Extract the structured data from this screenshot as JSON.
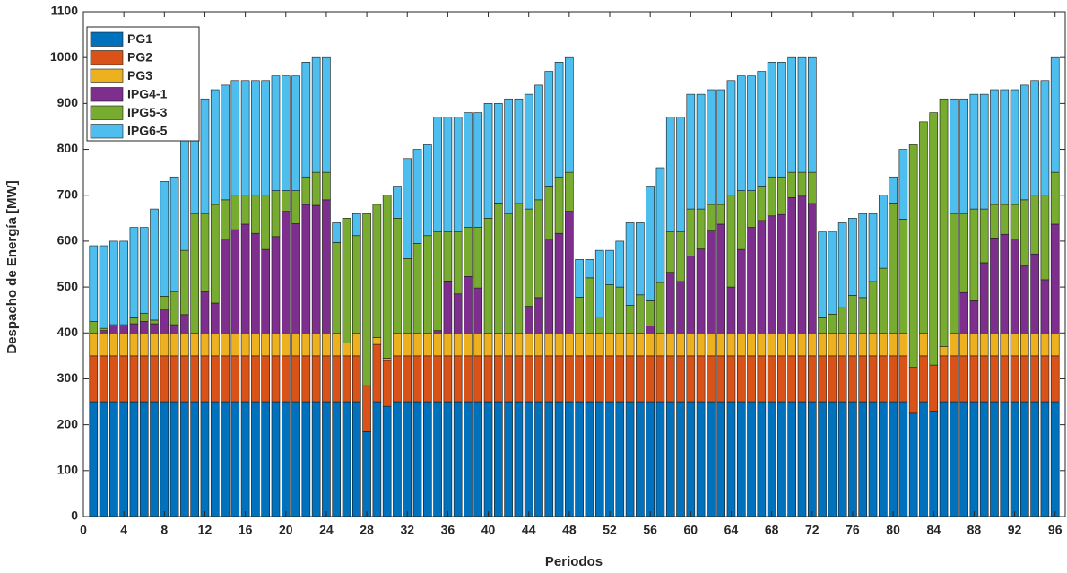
{
  "chart_data": {
    "type": "stacked_bar",
    "xlabel": "Periodos",
    "ylabel": "Despacho de Energía [MW]",
    "x": [
      1,
      2,
      3,
      4,
      5,
      6,
      7,
      8,
      9,
      10,
      11,
      12,
      13,
      14,
      15,
      16,
      17,
      18,
      19,
      20,
      21,
      22,
      23,
      24,
      25,
      26,
      27,
      28,
      29,
      30,
      31,
      32,
      33,
      34,
      35,
      36,
      37,
      38,
      39,
      40,
      41,
      42,
      43,
      44,
      45,
      46,
      47,
      48,
      49,
      50,
      51,
      52,
      53,
      54,
      55,
      56,
      57,
      58,
      59,
      60,
      61,
      62,
      63,
      64,
      65,
      66,
      67,
      68,
      69,
      70,
      71,
      72,
      73,
      74,
      75,
      76,
      77,
      78,
      79,
      80,
      81,
      82,
      83,
      84,
      85,
      86,
      87,
      88,
      89,
      90,
      91,
      92,
      93,
      94,
      95,
      96
    ],
    "xlim": [
      0,
      97
    ],
    "xticks": [
      0,
      4,
      8,
      12,
      16,
      20,
      24,
      28,
      32,
      36,
      40,
      44,
      48,
      52,
      56,
      60,
      64,
      68,
      72,
      76,
      80,
      84,
      88,
      92,
      96
    ],
    "ylim": [
      0,
      1100
    ],
    "yticks": [
      0,
      100,
      200,
      300,
      400,
      500,
      600,
      700,
      800,
      900,
      1000,
      1100
    ],
    "legend": "northwest",
    "series": [
      {
        "name": "PG1",
        "color": "#0072BD",
        "values": [
          250,
          250,
          250,
          250,
          250,
          250,
          250,
          250,
          250,
          250,
          250,
          250,
          250,
          250,
          250,
          250,
          250,
          250,
          250,
          250,
          250,
          250,
          250,
          250,
          250,
          250,
          250,
          185,
          250,
          240,
          250,
          250,
          250,
          250,
          250,
          250,
          250,
          250,
          250,
          250,
          250,
          250,
          250,
          250,
          250,
          250,
          250,
          250,
          250,
          250,
          250,
          250,
          250,
          250,
          250,
          250,
          250,
          250,
          250,
          250,
          250,
          250,
          250,
          250,
          250,
          250,
          250,
          250,
          250,
          250,
          250,
          250,
          250,
          250,
          250,
          250,
          250,
          250,
          250,
          250,
          250,
          225,
          250,
          230,
          250,
          250,
          250,
          250,
          250,
          250,
          250,
          250,
          250,
          250,
          250,
          250
        ]
      },
      {
        "name": "PG2",
        "color": "#D95319",
        "values": [
          100,
          100,
          100,
          100,
          100,
          100,
          100,
          100,
          100,
          100,
          100,
          100,
          100,
          100,
          100,
          100,
          100,
          100,
          100,
          100,
          100,
          100,
          100,
          100,
          100,
          100,
          100,
          100,
          125,
          100,
          100,
          100,
          100,
          100,
          100,
          100,
          100,
          100,
          100,
          100,
          100,
          100,
          100,
          100,
          100,
          100,
          100,
          100,
          100,
          100,
          100,
          100,
          100,
          100,
          100,
          100,
          100,
          100,
          100,
          100,
          100,
          100,
          100,
          100,
          100,
          100,
          100,
          100,
          100,
          100,
          100,
          100,
          100,
          100,
          100,
          100,
          100,
          100,
          100,
          100,
          100,
          100,
          100,
          100,
          100,
          100,
          100,
          100,
          100,
          100,
          100,
          100,
          100,
          100,
          100,
          100
        ]
      },
      {
        "name": "PG3",
        "color": "#EDB120",
        "values": [
          50,
          50,
          50,
          50,
          50,
          50,
          50,
          50,
          50,
          50,
          50,
          50,
          50,
          50,
          50,
          50,
          50,
          50,
          50,
          50,
          50,
          50,
          50,
          50,
          50,
          28,
          50,
          0,
          15,
          5,
          50,
          50,
          50,
          50,
          50,
          50,
          50,
          50,
          50,
          50,
          50,
          50,
          50,
          50,
          50,
          50,
          50,
          50,
          50,
          50,
          50,
          50,
          50,
          50,
          50,
          50,
          50,
          50,
          50,
          50,
          50,
          50,
          50,
          50,
          50,
          50,
          50,
          50,
          50,
          50,
          50,
          50,
          50,
          50,
          50,
          50,
          50,
          50,
          50,
          50,
          50,
          0,
          50,
          0,
          20,
          50,
          50,
          50,
          50,
          50,
          50,
          50,
          50,
          50,
          50,
          50
        ]
      },
      {
        "name": "IPG4-1",
        "color": "#7E2F8E",
        "values": [
          0,
          5,
          15,
          15,
          20,
          25,
          20,
          50,
          18,
          40,
          0,
          90,
          65,
          205,
          225,
          237,
          217,
          182,
          210,
          265,
          238,
          280,
          278,
          290,
          0,
          0,
          0,
          0,
          0,
          0,
          0,
          0,
          0,
          0,
          5,
          113,
          85,
          123,
          98,
          0,
          0,
          0,
          0,
          58,
          77,
          205,
          217,
          265,
          0,
          0,
          0,
          0,
          0,
          0,
          0,
          15,
          0,
          132,
          112,
          168,
          183,
          222,
          237,
          100,
          182,
          230,
          245,
          255,
          258,
          295,
          298,
          282,
          0,
          0,
          0,
          0,
          0,
          0,
          0,
          0,
          0,
          0,
          0,
          0,
          0,
          0,
          88,
          70,
          153,
          207,
          215,
          205,
          146,
          172,
          116,
          237
        ]
      },
      {
        "name": "IPG5-3",
        "color": "#77AC30",
        "values": [
          25,
          5,
          3,
          3,
          13,
          18,
          8,
          30,
          72,
          140,
          260,
          170,
          215,
          85,
          75,
          63,
          83,
          118,
          100,
          45,
          72,
          60,
          72,
          60,
          197,
          272,
          212,
          375,
          290,
          355,
          250,
          162,
          195,
          212,
          215,
          107,
          135,
          107,
          132,
          250,
          283,
          260,
          282,
          212,
          213,
          115,
          123,
          85,
          78,
          120,
          35,
          105,
          100,
          60,
          83,
          55,
          110,
          88,
          108,
          102,
          87,
          58,
          43,
          200,
          128,
          80,
          75,
          85,
          82,
          55,
          52,
          68,
          33,
          41,
          55,
          82,
          77,
          112,
          141,
          283,
          248,
          485,
          460,
          550,
          540,
          260,
          172,
          200,
          117,
          73,
          65,
          75,
          144,
          128,
          184,
          113
        ]
      },
      {
        "name": "IPG6-5",
        "color": "#4DBEEE",
        "values": [
          165,
          180,
          182,
          182,
          197,
          187,
          242,
          250,
          250,
          250,
          200,
          250,
          250,
          250,
          250,
          250,
          250,
          250,
          250,
          250,
          250,
          250,
          250,
          250,
          43,
          0,
          48,
          0,
          0,
          0,
          70,
          218,
          205,
          198,
          250,
          250,
          250,
          250,
          250,
          250,
          217,
          250,
          228,
          250,
          250,
          250,
          250,
          250,
          82,
          40,
          145,
          75,
          100,
          180,
          157,
          250,
          250,
          250,
          250,
          250,
          250,
          250,
          250,
          250,
          250,
          250,
          250,
          250,
          250,
          250,
          250,
          250,
          187,
          179,
          185,
          168,
          183,
          148,
          159,
          57,
          152,
          0,
          0,
          0,
          0,
          250,
          250,
          250,
          250,
          250,
          250,
          250,
          250,
          250,
          250,
          250
        ]
      }
    ]
  }
}
